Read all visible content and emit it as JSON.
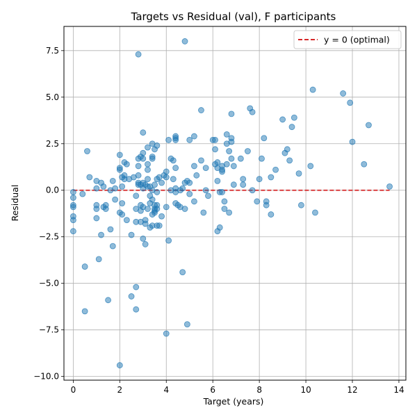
{
  "chart_data": {
    "type": "scatter",
    "title": "Targets vs Residual (val), F participants",
    "xlabel": "Target (years)",
    "ylabel": "Residual",
    "xlim": [
      -0.4,
      14.3
    ],
    "ylim": [
      -10.2,
      8.8
    ],
    "xticks": [
      0,
      2,
      4,
      6,
      8,
      10,
      12,
      14
    ],
    "yticks": [
      -10.0,
      -7.5,
      -5.0,
      -2.5,
      0.0,
      2.5,
      5.0,
      7.5
    ],
    "xtick_labels": [
      "0",
      "2",
      "4",
      "6",
      "8",
      "10",
      "12",
      "14"
    ],
    "ytick_labels": [
      "−10.0",
      "−7.5",
      "−5.0",
      "−2.5",
      "0.0",
      "2.5",
      "5.0",
      "7.5"
    ],
    "grid": true,
    "legend_position": "top-right",
    "colors": {
      "points": "#1f77b4",
      "reference_line": "#d62728",
      "grid": "#b0b0b0"
    },
    "reference_line": {
      "label": "y = 0 (optimal)",
      "y": 0.0,
      "style": "dashed",
      "x_range": [
        0,
        13.6
      ]
    },
    "points": [
      [
        0.0,
        -0.1
      ],
      [
        0.0,
        -0.4
      ],
      [
        0.0,
        -0.8
      ],
      [
        0.0,
        -0.9
      ],
      [
        0.0,
        -1.4
      ],
      [
        0.0,
        -1.6
      ],
      [
        0.0,
        -2.2
      ],
      [
        0.4,
        -0.2
      ],
      [
        0.5,
        -4.1
      ],
      [
        0.5,
        -6.5
      ],
      [
        0.6,
        2.1
      ],
      [
        0.7,
        0.7
      ],
      [
        1.0,
        0.5
      ],
      [
        1.0,
        0.1
      ],
      [
        1.0,
        -0.8
      ],
      [
        1.0,
        -1.0
      ],
      [
        1.0,
        -1.5
      ],
      [
        1.2,
        0.4
      ],
      [
        1.2,
        -2.4
      ],
      [
        1.1,
        -3.7
      ],
      [
        1.3,
        0.2
      ],
      [
        1.3,
        -0.9
      ],
      [
        1.4,
        -0.8
      ],
      [
        1.4,
        -1.0
      ],
      [
        1.5,
        -5.9
      ],
      [
        1.6,
        0.0
      ],
      [
        1.6,
        -2.1
      ],
      [
        1.7,
        -3.0
      ],
      [
        1.7,
        0.5
      ],
      [
        1.8,
        -0.5
      ],
      [
        1.8,
        0.1
      ],
      [
        2.0,
        1.9
      ],
      [
        2.0,
        1.2
      ],
      [
        2.0,
        1.1
      ],
      [
        2.0,
        -1.2
      ],
      [
        2.0,
        -9.4
      ],
      [
        2.1,
        0.7
      ],
      [
        2.1,
        0.2
      ],
      [
        2.1,
        -0.7
      ],
      [
        2.1,
        -1.3
      ],
      [
        2.2,
        0.8
      ],
      [
        2.2,
        0.6
      ],
      [
        2.2,
        1.5
      ],
      [
        2.3,
        1.4
      ],
      [
        2.3,
        -1.6
      ],
      [
        2.4,
        0.6
      ],
      [
        2.5,
        -5.7
      ],
      [
        2.5,
        -2.4
      ],
      [
        2.6,
        0.7
      ],
      [
        2.7,
        -0.3
      ],
      [
        2.7,
        -1.0
      ],
      [
        2.7,
        -1.7
      ],
      [
        2.7,
        -5.2
      ],
      [
        2.7,
        -6.4
      ],
      [
        2.8,
        7.3
      ],
      [
        2.8,
        1.7
      ],
      [
        2.8,
        1.3
      ],
      [
        2.8,
        0.8
      ],
      [
        2.8,
        0.4
      ],
      [
        2.8,
        0.3
      ],
      [
        2.9,
        -0.8
      ],
      [
        2.9,
        -1.1
      ],
      [
        2.9,
        -1.7
      ],
      [
        2.9,
        1.8
      ],
      [
        2.9,
        0.3
      ],
      [
        3.0,
        3.1
      ],
      [
        3.0,
        2.0
      ],
      [
        3.0,
        1.7
      ],
      [
        3.0,
        0.4
      ],
      [
        3.0,
        0.1
      ],
      [
        3.0,
        -0.9
      ],
      [
        3.0,
        -2.6
      ],
      [
        3.1,
        -1.6
      ],
      [
        3.1,
        -1.8
      ],
      [
        3.1,
        -2.9
      ],
      [
        3.1,
        0.3
      ],
      [
        3.2,
        1.4
      ],
      [
        3.2,
        1.1
      ],
      [
        3.2,
        0.6
      ],
      [
        3.2,
        0.2
      ],
      [
        3.2,
        -1.0
      ],
      [
        3.2,
        2.3
      ],
      [
        3.3,
        0.2
      ],
      [
        3.3,
        -0.3
      ],
      [
        3.3,
        -2.0
      ],
      [
        3.3,
        -0.7
      ],
      [
        3.4,
        2.5
      ],
      [
        3.4,
        1.8
      ],
      [
        3.4,
        1.7
      ],
      [
        3.4,
        0.0
      ],
      [
        3.4,
        -0.5
      ],
      [
        3.4,
        -1.3
      ],
      [
        3.4,
        -1.9
      ],
      [
        3.5,
        2.2
      ],
      [
        3.5,
        0.3
      ],
      [
        3.5,
        -0.8
      ],
      [
        3.5,
        -1.0
      ],
      [
        3.5,
        -1.1
      ],
      [
        3.5,
        -1.2
      ],
      [
        3.6,
        2.4
      ],
      [
        3.6,
        0.6
      ],
      [
        3.6,
        -0.1
      ],
      [
        3.6,
        -0.8
      ],
      [
        3.6,
        -1.0
      ],
      [
        3.6,
        -1.9
      ],
      [
        3.7,
        0.7
      ],
      [
        3.7,
        -1.9
      ],
      [
        3.8,
        0.4
      ],
      [
        3.8,
        -1.4
      ],
      [
        3.9,
        0.8
      ],
      [
        4.0,
        1.0
      ],
      [
        4.0,
        0.7
      ],
      [
        4.0,
        -0.9
      ],
      [
        4.0,
        -7.7
      ],
      [
        4.1,
        2.7
      ],
      [
        4.1,
        -2.7
      ],
      [
        4.2,
        1.7
      ],
      [
        4.2,
        0.0
      ],
      [
        4.3,
        1.6
      ],
      [
        4.3,
        0.6
      ],
      [
        4.4,
        2.9
      ],
      [
        4.4,
        2.8
      ],
      [
        4.4,
        2.7
      ],
      [
        4.4,
        1.2
      ],
      [
        4.4,
        0.1
      ],
      [
        4.4,
        -0.1
      ],
      [
        4.4,
        -0.7
      ],
      [
        4.5,
        -0.8
      ],
      [
        4.6,
        -0.9
      ],
      [
        4.6,
        0.0
      ],
      [
        4.7,
        0.1
      ],
      [
        4.7,
        -4.4
      ],
      [
        4.8,
        8.0
      ],
      [
        4.8,
        0.4
      ],
      [
        4.8,
        -1.0
      ],
      [
        4.9,
        0.5
      ],
      [
        4.9,
        -7.2
      ],
      [
        5.0,
        2.7
      ],
      [
        5.0,
        0.4
      ],
      [
        5.0,
        -0.2
      ],
      [
        5.2,
        2.9
      ],
      [
        5.2,
        1.3
      ],
      [
        5.2,
        -0.6
      ],
      [
        5.3,
        0.8
      ],
      [
        5.5,
        4.3
      ],
      [
        5.5,
        1.6
      ],
      [
        5.6,
        -1.2
      ],
      [
        5.7,
        1.2
      ],
      [
        5.7,
        0.0
      ],
      [
        5.8,
        -0.3
      ],
      [
        6.0,
        2.7
      ],
      [
        6.1,
        2.7
      ],
      [
        6.1,
        2.2
      ],
      [
        6.1,
        1.4
      ],
      [
        6.2,
        1.2
      ],
      [
        6.2,
        1.5
      ],
      [
        6.2,
        0.5
      ],
      [
        6.2,
        -2.2
      ],
      [
        6.3,
        -0.1
      ],
      [
        6.3,
        -2.0
      ],
      [
        6.4,
        1.3
      ],
      [
        6.4,
        1.1
      ],
      [
        6.4,
        1.0
      ],
      [
        6.4,
        -0.1
      ],
      [
        6.5,
        -0.6
      ],
      [
        6.5,
        -1.0
      ],
      [
        6.6,
        3.0
      ],
      [
        6.6,
        2.5
      ],
      [
        6.6,
        1.4
      ],
      [
        6.7,
        2.1
      ],
      [
        6.7,
        -1.2
      ],
      [
        6.8,
        4.1
      ],
      [
        6.8,
        2.8
      ],
      [
        6.8,
        2.6
      ],
      [
        6.8,
        1.7
      ],
      [
        6.9,
        1.3
      ],
      [
        6.9,
        0.3
      ],
      [
        7.2,
        1.7
      ],
      [
        7.3,
        0.6
      ],
      [
        7.3,
        0.3
      ],
      [
        7.5,
        2.1
      ],
      [
        7.6,
        4.4
      ],
      [
        7.7,
        4.2
      ],
      [
        7.7,
        0.0
      ],
      [
        7.9,
        -0.6
      ],
      [
        8.0,
        0.6
      ],
      [
        8.1,
        1.7
      ],
      [
        8.2,
        2.8
      ],
      [
        8.3,
        -0.6
      ],
      [
        8.3,
        -0.8
      ],
      [
        8.5,
        -1.3
      ],
      [
        8.5,
        0.7
      ],
      [
        8.7,
        1.1
      ],
      [
        9.0,
        3.8
      ],
      [
        9.1,
        2.0
      ],
      [
        9.2,
        2.2
      ],
      [
        9.3,
        1.6
      ],
      [
        9.4,
        3.4
      ],
      [
        9.5,
        3.9
      ],
      [
        9.7,
        0.9
      ],
      [
        9.8,
        -0.8
      ],
      [
        10.2,
        1.3
      ],
      [
        10.3,
        5.4
      ],
      [
        10.4,
        -1.2
      ],
      [
        11.6,
        5.2
      ],
      [
        11.9,
        4.7
      ],
      [
        12.0,
        2.6
      ],
      [
        12.5,
        1.4
      ],
      [
        12.7,
        3.5
      ],
      [
        13.6,
        0.2
      ]
    ]
  }
}
